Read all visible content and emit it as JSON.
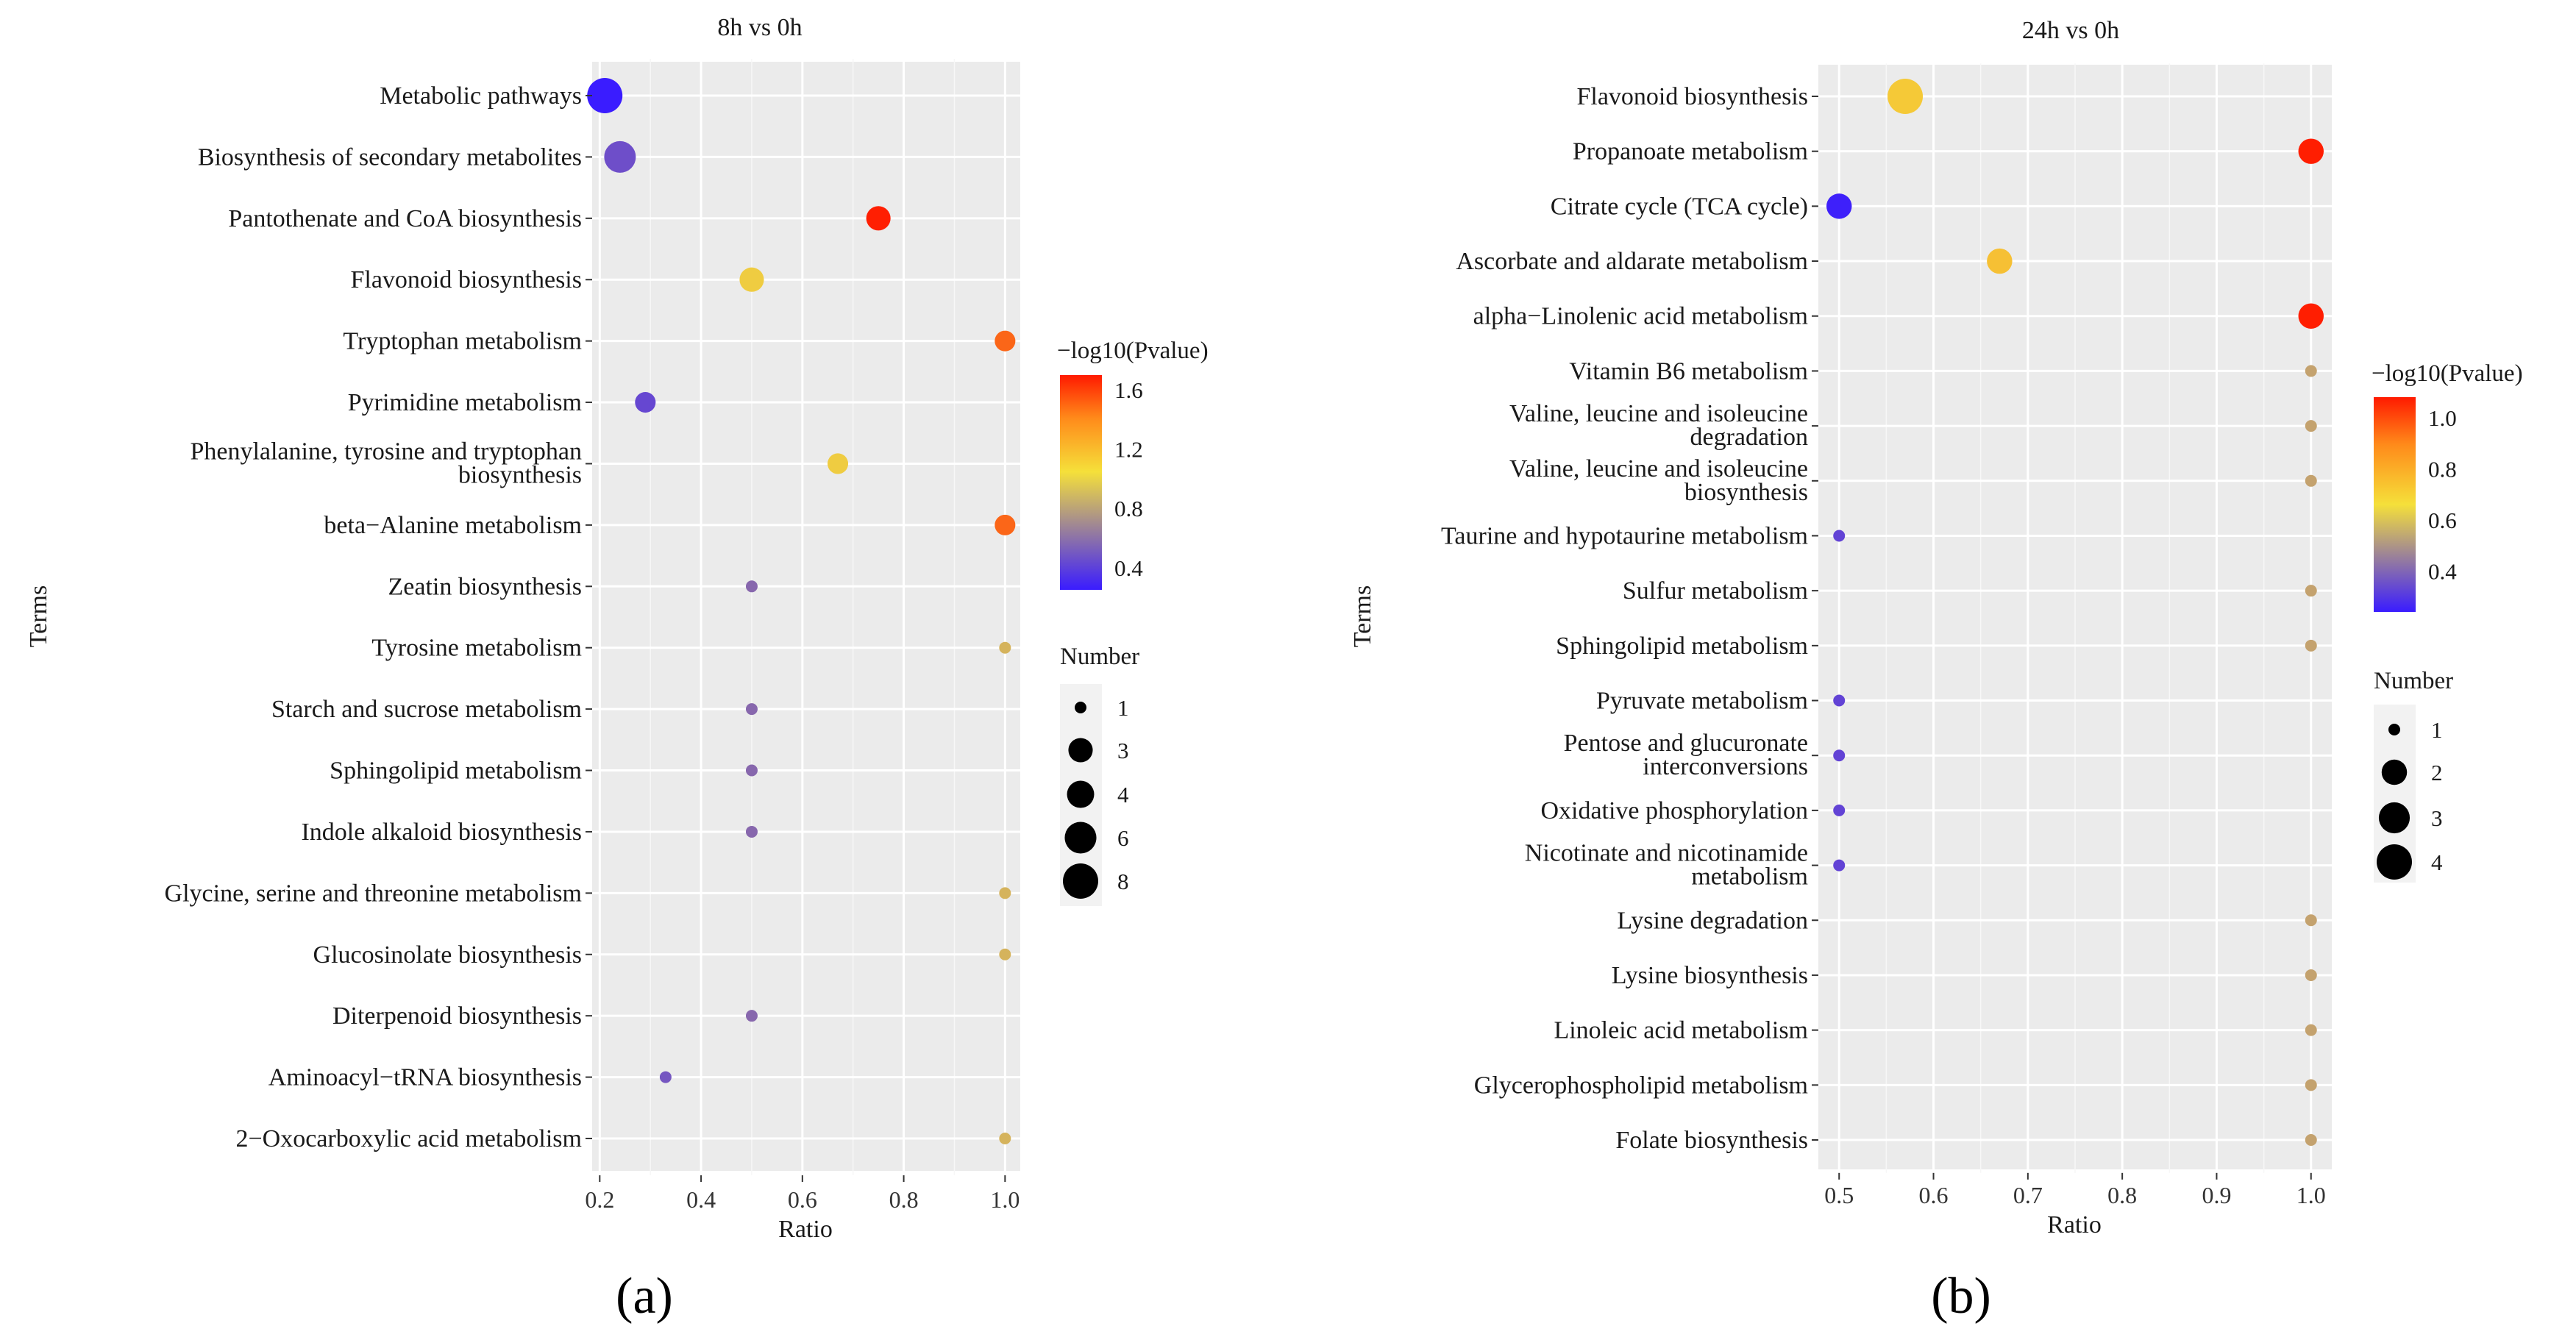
{
  "chart_data": [
    {
      "panel": "(a)",
      "type": "scatter",
      "title": "8h vs 0h",
      "xlabel": "Ratio",
      "ylabel": "Terms",
      "xlim": [
        0.185,
        1.03
      ],
      "xticks": [
        0.2,
        0.4,
        0.6,
        0.8,
        1.0
      ],
      "xtick_labels": [
        "0.2",
        "0.4",
        "0.6",
        "0.8",
        "1.0"
      ],
      "color_legend": {
        "title": "−log10(Pvalue)",
        "ticks": [
          1.6,
          1.2,
          0.8,
          0.4
        ],
        "tick_labels": [
          "1.6",
          "1.2",
          "0.8",
          "0.4"
        ],
        "range": [
          0.25,
          1.7
        ],
        "colors": [
          "#3a1cff",
          "#f5d23a",
          "#ff1a00"
        ]
      },
      "size_legend": {
        "title": "Number",
        "values": [
          1,
          3,
          4,
          6,
          8
        ],
        "labels": [
          "1",
          "3",
          "4",
          "6",
          "8"
        ]
      },
      "terms": [
        {
          "term": [
            "Metabolic pathways"
          ],
          "ratio": 0.21,
          "number": 8,
          "neglog10p": 0.25
        },
        {
          "term": [
            "Biosynthesis of secondary metabolites"
          ],
          "ratio": 0.24,
          "number": 6,
          "neglog10p": 0.45
        },
        {
          "term": [
            "Pantothenate and CoA biosynthesis"
          ],
          "ratio": 0.75,
          "number": 3,
          "neglog10p": 1.68
        },
        {
          "term": [
            "Flavonoid biosynthesis"
          ],
          "ratio": 0.5,
          "number": 3,
          "neglog10p": 0.95
        },
        {
          "term": [
            "Tryptophan metabolism"
          ],
          "ratio": 1.0,
          "number": 2,
          "neglog10p": 1.4
        },
        {
          "term": [
            "Pyrimidine metabolism"
          ],
          "ratio": 0.29,
          "number": 2,
          "neglog10p": 0.42
        },
        {
          "term": [
            "Phenylalanine, tyrosine and tryptophan",
            "biosynthesis"
          ],
          "ratio": 0.67,
          "number": 2,
          "neglog10p": 0.95
        },
        {
          "term": [
            "beta−Alanine metabolism"
          ],
          "ratio": 1.0,
          "number": 2,
          "neglog10p": 1.4
        },
        {
          "term": [
            "Zeatin biosynthesis"
          ],
          "ratio": 0.5,
          "number": 1,
          "neglog10p": 0.55
        },
        {
          "term": [
            "Tyrosine metabolism"
          ],
          "ratio": 1.0,
          "number": 1,
          "neglog10p": 0.85
        },
        {
          "term": [
            "Starch and sucrose metabolism"
          ],
          "ratio": 0.5,
          "number": 1,
          "neglog10p": 0.55
        },
        {
          "term": [
            "Sphingolipid metabolism"
          ],
          "ratio": 0.5,
          "number": 1,
          "neglog10p": 0.55
        },
        {
          "term": [
            "Indole alkaloid biosynthesis"
          ],
          "ratio": 0.5,
          "number": 1,
          "neglog10p": 0.55
        },
        {
          "term": [
            "Glycine, serine and threonine metabolism"
          ],
          "ratio": 1.0,
          "number": 1,
          "neglog10p": 0.85
        },
        {
          "term": [
            "Glucosinolate biosynthesis"
          ],
          "ratio": 1.0,
          "number": 1,
          "neglog10p": 0.85
        },
        {
          "term": [
            "Diterpenoid biosynthesis"
          ],
          "ratio": 0.5,
          "number": 1,
          "neglog10p": 0.55
        },
        {
          "term": [
            "Aminoacyl−tRNA biosynthesis"
          ],
          "ratio": 0.33,
          "number": 1,
          "neglog10p": 0.48
        },
        {
          "term": [
            "2−Oxocarboxylic acid metabolism"
          ],
          "ratio": 1.0,
          "number": 1,
          "neglog10p": 0.85
        }
      ]
    },
    {
      "panel": "(b)",
      "type": "scatter",
      "title": "24h vs 0h",
      "xlabel": "Ratio",
      "ylabel": "Terms",
      "xlim": [
        0.478,
        1.022
      ],
      "xticks": [
        0.5,
        0.6,
        0.7,
        0.8,
        0.9,
        1.0
      ],
      "xtick_labels": [
        "0.5",
        "0.6",
        "0.7",
        "0.8",
        "0.9",
        "1.0"
      ],
      "color_legend": {
        "title": "−log10(Pvalue)",
        "ticks": [
          1.0,
          0.8,
          0.6,
          0.4
        ],
        "tick_labels": [
          "1.0",
          "0.8",
          "0.6",
          "0.4"
        ],
        "range": [
          0.24,
          1.08
        ],
        "colors": [
          "#3a1cff",
          "#f5d23a",
          "#ff1a00"
        ]
      },
      "size_legend": {
        "title": "Number",
        "values": [
          1,
          2,
          3,
          4
        ],
        "labels": [
          "1",
          "2",
          "3",
          "4"
        ]
      },
      "terms": [
        {
          "term": [
            "Flavonoid biosynthesis"
          ],
          "ratio": 0.57,
          "number": 4,
          "neglog10p": 0.68
        },
        {
          "term": [
            "Propanoate metabolism"
          ],
          "ratio": 1.0,
          "number": 2,
          "neglog10p": 1.07
        },
        {
          "term": [
            "Citrate cycle (TCA cycle)"
          ],
          "ratio": 0.5,
          "number": 2,
          "neglog10p": 0.25
        },
        {
          "term": [
            "Ascorbate and aldarate metabolism"
          ],
          "ratio": 0.67,
          "number": 2,
          "neglog10p": 0.7
        },
        {
          "term": [
            "alpha−Linolenic acid metabolism"
          ],
          "ratio": 1.0,
          "number": 2,
          "neglog10p": 1.07
        },
        {
          "term": [
            "Vitamin B6 metabolism"
          ],
          "ratio": 1.0,
          "number": 1,
          "neglog10p": 0.55
        },
        {
          "term": [
            "Valine, leucine and isoleucine",
            "degradation"
          ],
          "ratio": 1.0,
          "number": 1,
          "neglog10p": 0.55
        },
        {
          "term": [
            "Valine, leucine and isoleucine",
            "biosynthesis"
          ],
          "ratio": 1.0,
          "number": 1,
          "neglog10p": 0.55
        },
        {
          "term": [
            "Taurine and hypotaurine metabolism"
          ],
          "ratio": 0.5,
          "number": 1,
          "neglog10p": 0.33
        },
        {
          "term": [
            "Sulfur metabolism"
          ],
          "ratio": 1.0,
          "number": 1,
          "neglog10p": 0.55
        },
        {
          "term": [
            "Sphingolipid metabolism"
          ],
          "ratio": 1.0,
          "number": 1,
          "neglog10p": 0.55
        },
        {
          "term": [
            "Pyruvate metabolism"
          ],
          "ratio": 0.5,
          "number": 1,
          "neglog10p": 0.33
        },
        {
          "term": [
            "Pentose and glucuronate",
            "interconversions"
          ],
          "ratio": 0.5,
          "number": 1,
          "neglog10p": 0.33
        },
        {
          "term": [
            "Oxidative phosphorylation"
          ],
          "ratio": 0.5,
          "number": 1,
          "neglog10p": 0.33
        },
        {
          "term": [
            "Nicotinate and nicotinamide",
            "metabolism"
          ],
          "ratio": 0.5,
          "number": 1,
          "neglog10p": 0.33
        },
        {
          "term": [
            "Lysine degradation"
          ],
          "ratio": 1.0,
          "number": 1,
          "neglog10p": 0.55
        },
        {
          "term": [
            "Lysine biosynthesis"
          ],
          "ratio": 1.0,
          "number": 1,
          "neglog10p": 0.55
        },
        {
          "term": [
            "Linoleic acid metabolism"
          ],
          "ratio": 1.0,
          "number": 1,
          "neglog10p": 0.55
        },
        {
          "term": [
            "Glycerophospholipid metabolism"
          ],
          "ratio": 1.0,
          "number": 1,
          "neglog10p": 0.55
        },
        {
          "term": [
            "Folate biosynthesis"
          ],
          "ratio": 1.0,
          "number": 1,
          "neglog10p": 0.55
        }
      ]
    }
  ]
}
